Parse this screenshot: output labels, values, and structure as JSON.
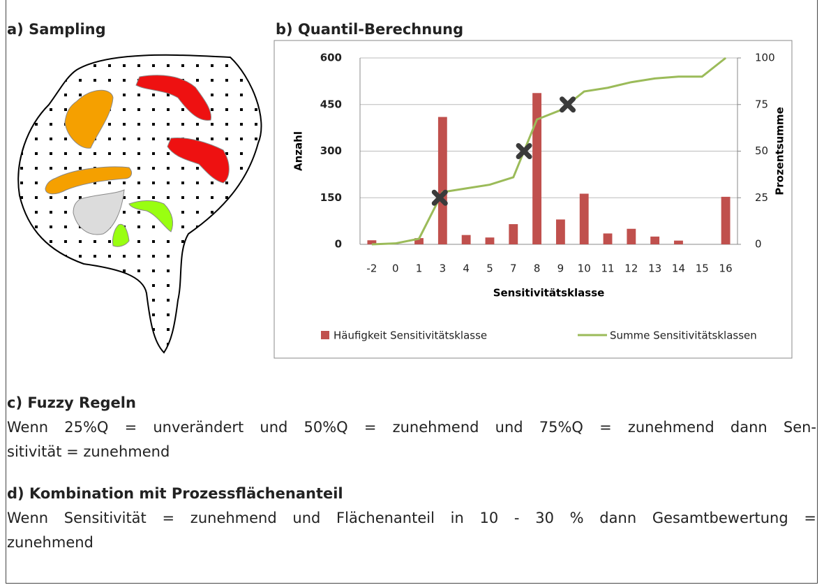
{
  "panel_a": {
    "title": "a) Sampling"
  },
  "chart_data": {
    "type": "bar",
    "title": "b) Quantil-Berechnung",
    "categories": [
      "-2",
      "0",
      "1",
      "3",
      "4",
      "5",
      "7",
      "8",
      "9",
      "10",
      "11",
      "12",
      "13",
      "14",
      "15",
      "16"
    ],
    "series": [
      {
        "name": "Häufigkeit Sensitivitätsklasse",
        "color": "#c0504d",
        "axis": "y",
        "values": [
          13,
          0,
          20,
          410,
          30,
          22,
          65,
          487,
          80,
          163,
          35,
          50,
          25,
          12,
          0,
          153
        ]
      },
      {
        "name": "Summe Sensitivitätsklassen",
        "color": "#9bbb59",
        "axis": "y2",
        "values": [
          0,
          0.5,
          3,
          28,
          30,
          32,
          36,
          67,
          72,
          82,
          84,
          87,
          89,
          90,
          90,
          100
        ]
      }
    ],
    "quantile_markers": [
      25,
      50,
      75
    ],
    "x_label": "Sensitivitätsklasse",
    "y_label": "Anzahl",
    "y2_label": "Prozentsumme",
    "ylim": [
      0,
      600
    ],
    "yticks": [
      0,
      150,
      300,
      450,
      600
    ],
    "y2lim": [
      0,
      100
    ],
    "y2ticks": [
      0,
      25,
      50,
      75,
      100
    ],
    "grid": true,
    "legend": "bottom"
  },
  "panel_c": {
    "title": "c) Fuzzy Regeln",
    "lines": [
      "Wenn 25%Q = unverändert und 50%Q = zunehmend und 75%Q = zunehmend dann Sen-",
      "sitivität = zunehmend"
    ]
  },
  "panel_d": {
    "title": "d) Kombination mit Prozessflächenanteil",
    "lines": [
      "Wenn Sensitivität = zunehmend und Flächenanteil in 10 - 30 % dann Gesamtbewertung =",
      "zunehmend"
    ]
  }
}
